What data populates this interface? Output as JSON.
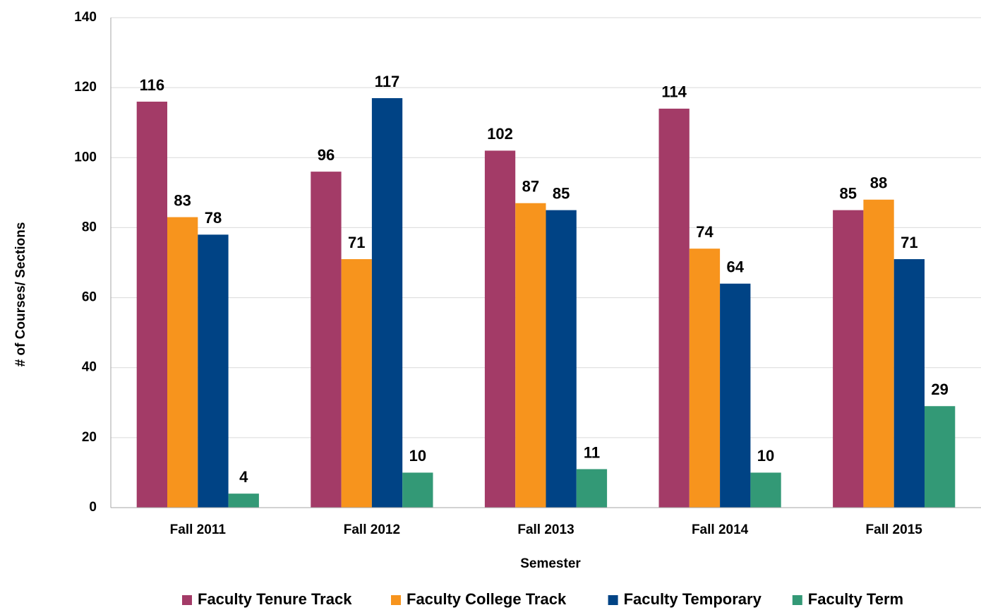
{
  "chart_data": {
    "type": "bar",
    "xlabel": "Semester",
    "ylabel": "# of Courses/ Sections",
    "categories": [
      "Fall 2011",
      "Fall 2012",
      "Fall 2013",
      "Fall 2014",
      "Fall 2015"
    ],
    "series": [
      {
        "name": "Faculty Tenure Track",
        "color": "#a33b67",
        "values": [
          116,
          96,
          102,
          114,
          85
        ]
      },
      {
        "name": "Faculty College Track",
        "color": "#f7941d",
        "values": [
          83,
          71,
          87,
          74,
          88
        ]
      },
      {
        "name": "Faculty Temporary",
        "color": "#004385",
        "values": [
          78,
          117,
          85,
          64,
          71
        ]
      },
      {
        "name": "Faculty Term",
        "color": "#339976",
        "values": [
          4,
          10,
          11,
          10,
          29
        ]
      }
    ],
    "ylim": [
      0,
      140
    ],
    "yticks": [
      0,
      20,
      40,
      60,
      80,
      100,
      120,
      140
    ],
    "grid": true,
    "legend": "bottom"
  }
}
